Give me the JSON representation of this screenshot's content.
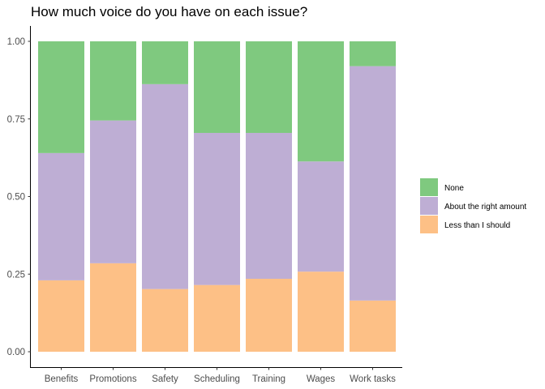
{
  "chart_data": {
    "type": "bar",
    "stacked": true,
    "title": "How much voice do you have on each issue?",
    "xlabel": "",
    "ylabel": "",
    "ylim": [
      0,
      1
    ],
    "yticks": [
      "0.00",
      "0.25",
      "0.50",
      "0.75",
      "1.00"
    ],
    "categories": [
      "Benefits",
      "Promotions",
      "Safety",
      "Scheduling",
      "Training",
      "Wages",
      "Work tasks"
    ],
    "series": [
      {
        "name": "Less than I should",
        "color": "#fdc086",
        "values": [
          0.23,
          0.285,
          0.202,
          0.215,
          0.235,
          0.258,
          0.165
        ]
      },
      {
        "name": "About the right amount",
        "color": "#beaed4",
        "values": [
          0.41,
          0.46,
          0.66,
          0.49,
          0.47,
          0.355,
          0.755
        ]
      },
      {
        "name": "None",
        "color": "#7fc97f",
        "values": [
          0.36,
          0.255,
          0.138,
          0.295,
          0.295,
          0.387,
          0.08
        ]
      }
    ],
    "legend": {
      "placement": "right",
      "order": [
        "None",
        "About the right amount",
        "Less than I should"
      ]
    },
    "grid": false
  }
}
